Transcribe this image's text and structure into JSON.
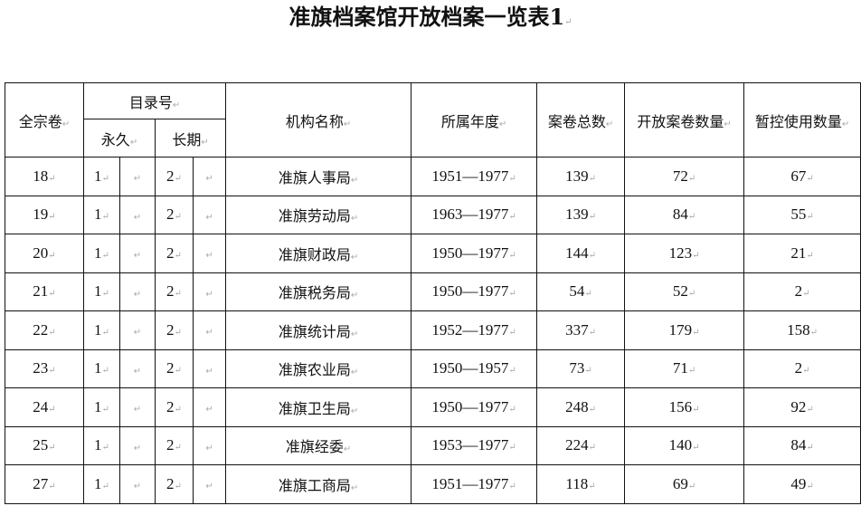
{
  "title": "准旗档案馆开放档案一览表1",
  "headers": {
    "fonds": "全宗卷",
    "catalog": "目录号",
    "permanent": "永久",
    "long_term": "长期",
    "org": "机构名称",
    "years": "所属年度",
    "total": "案卷总数",
    "open": "开放案卷数量",
    "restricted": "暂控使用数量"
  },
  "rows": [
    {
      "fonds": "18",
      "perm": "1",
      "long": "2",
      "org": "准旗人事局",
      "years": "1951—1977",
      "total": "139",
      "open": "72",
      "restricted": "67"
    },
    {
      "fonds": "19",
      "perm": "1",
      "long": "2",
      "org": "准旗劳动局",
      "years": "1963—1977",
      "total": "139",
      "open": "84",
      "restricted": "55"
    },
    {
      "fonds": "20",
      "perm": "1",
      "long": "2",
      "org": "准旗财政局",
      "years": "1950—1977",
      "total": "144",
      "open": "123",
      "restricted": "21"
    },
    {
      "fonds": "21",
      "perm": "1",
      "long": "2",
      "org": "准旗税务局",
      "years": "1950—1977",
      "total": "54",
      "open": "52",
      "restricted": "2"
    },
    {
      "fonds": "22",
      "perm": "1",
      "long": "2",
      "org": "准旗统计局",
      "years": "1952—1977",
      "total": "337",
      "open": "179",
      "restricted": "158"
    },
    {
      "fonds": "23",
      "perm": "1",
      "long": "2",
      "org": "准旗农业局",
      "years": "1950—1957",
      "total": "73",
      "open": "71",
      "restricted": "2"
    },
    {
      "fonds": "24",
      "perm": "1",
      "long": "2",
      "org": "准旗卫生局",
      "years": "1950—1977",
      "total": "248",
      "open": "156",
      "restricted": "92"
    },
    {
      "fonds": "25",
      "perm": "1",
      "long": "2",
      "org": "准旗经委",
      "years": "1953—1977",
      "total": "224",
      "open": "140",
      "restricted": "84"
    },
    {
      "fonds": "27",
      "perm": "1",
      "long": "2",
      "org": "准旗工商局",
      "years": "1951—1977",
      "total": "118",
      "open": "69",
      "restricted": "49"
    }
  ]
}
